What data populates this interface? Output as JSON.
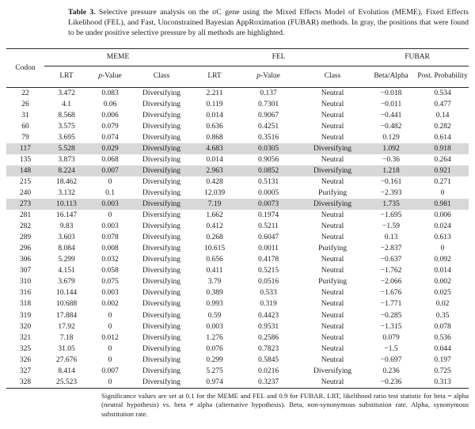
{
  "caption": {
    "label": "Table 3.",
    "text": " Selective pressure analysis on the σC gene using the Mixed Effects Model of Evolution (MEME), Fixed Effects Likelihood (FEL), and Fast, Unconstrained Bayesian AppRoximation (FUBAR) methods. In gray, the positions that were found to be under positive selective pressure by all methods are highlighted."
  },
  "table": {
    "group_headers": [
      "MEME",
      "FEL",
      "FUBAR"
    ],
    "columns": [
      "Codon",
      "LRT",
      "p-Value",
      "Class",
      "LRT",
      "p-Value",
      "Class",
      "Beta/Alpha",
      "Post. Probability"
    ],
    "p_value_header": {
      "italic": "p",
      "rest": "-Value"
    },
    "highlight_color": "#d8d8d8",
    "highlighted_codons": [
      "117",
      "148",
      "273"
    ],
    "rows": [
      {
        "codon": "22",
        "meme_lrt": "3.472",
        "meme_p": "0.083",
        "meme_class": "Diversifying",
        "fel_lrt": "2.211",
        "fel_p": "0.137",
        "fel_class": "Neutral",
        "beta_alpha": "−0.018",
        "post_prob": "0.534",
        "highlight": false
      },
      {
        "codon": "26",
        "meme_lrt": "4.1",
        "meme_p": "0.06",
        "meme_class": "Diversifying",
        "fel_lrt": "0.119",
        "fel_p": "0.7301",
        "fel_class": "Neutral",
        "beta_alpha": "−0.011",
        "post_prob": "0.477",
        "highlight": false
      },
      {
        "codon": "31",
        "meme_lrt": "8.568",
        "meme_p": "0.006",
        "meme_class": "Diversifying",
        "fel_lrt": "0.014",
        "fel_p": "0.9067",
        "fel_class": "Neutral",
        "beta_alpha": "−0.441",
        "post_prob": "0.14",
        "highlight": false
      },
      {
        "codon": "60",
        "meme_lrt": "3.575",
        "meme_p": "0.079",
        "meme_class": "Diversifying",
        "fel_lrt": "0.636",
        "fel_p": "0.4251",
        "fel_class": "Neutral",
        "beta_alpha": "−0.482",
        "post_prob": "0.282",
        "highlight": false
      },
      {
        "codon": "79",
        "meme_lrt": "3.695",
        "meme_p": "0.074",
        "meme_class": "Diversifying",
        "fel_lrt": "0.868",
        "fel_p": "0.3516",
        "fel_class": "Neutral",
        "beta_alpha": "0.129",
        "post_prob": "0.614",
        "highlight": false
      },
      {
        "codon": "117",
        "meme_lrt": "5.528",
        "meme_p": "0.029",
        "meme_class": "Diversifying",
        "fel_lrt": "4.683",
        "fel_p": "0.0305",
        "fel_class": "Diversifying",
        "beta_alpha": "1.092",
        "post_prob": "0.918",
        "highlight": true
      },
      {
        "codon": "135",
        "meme_lrt": "3.873",
        "meme_p": "0.068",
        "meme_class": "Diversifying",
        "fel_lrt": "0.014",
        "fel_p": "0.9056",
        "fel_class": "Neutral",
        "beta_alpha": "−0.36",
        "post_prob": "0.264",
        "highlight": false
      },
      {
        "codon": "148",
        "meme_lrt": "8.224",
        "meme_p": "0.007",
        "meme_class": "Diversifying",
        "fel_lrt": "2.963",
        "fel_p": "0.0852",
        "fel_class": "Diversifying",
        "beta_alpha": "1.218",
        "post_prob": "0.921",
        "highlight": true
      },
      {
        "codon": "215",
        "meme_lrt": "18.462",
        "meme_p": "0",
        "meme_class": "Diversifying",
        "fel_lrt": "0.428",
        "fel_p": "0.5131",
        "fel_class": "Neutral",
        "beta_alpha": "−0.161",
        "post_prob": "0.271",
        "highlight": false
      },
      {
        "codon": "240",
        "meme_lrt": "3.132",
        "meme_p": "0.1",
        "meme_class": "Diversifying",
        "fel_lrt": "12.039",
        "fel_p": "0.0005",
        "fel_class": "Purifying",
        "beta_alpha": "−2.393",
        "post_prob": "0",
        "highlight": false
      },
      {
        "codon": "273",
        "meme_lrt": "10.113",
        "meme_p": "0.003",
        "meme_class": "Diversifying",
        "fel_lrt": "7.19",
        "fel_p": "0.0073",
        "fel_class": "Diversifying",
        "beta_alpha": "1.735",
        "post_prob": "0.981",
        "highlight": true
      },
      {
        "codon": "281",
        "meme_lrt": "16.147",
        "meme_p": "0",
        "meme_class": "Diversifying",
        "fel_lrt": "1.662",
        "fel_p": "0.1974",
        "fel_class": "Neutral",
        "beta_alpha": "−1.695",
        "post_prob": "0.006",
        "highlight": false
      },
      {
        "codon": "282",
        "meme_lrt": "9.83",
        "meme_p": "0.003",
        "meme_class": "Diversifying",
        "fel_lrt": "0.412",
        "fel_p": "0.5211",
        "fel_class": "Neutral",
        "beta_alpha": "−1.59",
        "post_prob": "0.024",
        "highlight": false
      },
      {
        "codon": "289",
        "meme_lrt": "3.603",
        "meme_p": "0.078",
        "meme_class": "Diversifying",
        "fel_lrt": "0.268",
        "fel_p": "0.6047",
        "fel_class": "Neutral",
        "beta_alpha": "0.13",
        "post_prob": "0.613",
        "highlight": false
      },
      {
        "codon": "296",
        "meme_lrt": "8.084",
        "meme_p": "0.008",
        "meme_class": "Diversifying",
        "fel_lrt": "10.615",
        "fel_p": "0.0011",
        "fel_class": "Purifying",
        "beta_alpha": "−2.837",
        "post_prob": "0",
        "highlight": false
      },
      {
        "codon": "306",
        "meme_lrt": "5.299",
        "meme_p": "0.032",
        "meme_class": "Diversifying",
        "fel_lrt": "0.656",
        "fel_p": "0.4178",
        "fel_class": "Neutral",
        "beta_alpha": "−0.637",
        "post_prob": "0.092",
        "highlight": false
      },
      {
        "codon": "307",
        "meme_lrt": "4.151",
        "meme_p": "0.058",
        "meme_class": "Diversifying",
        "fel_lrt": "0.411",
        "fel_p": "0.5215",
        "fel_class": "Neutral",
        "beta_alpha": "−1.762",
        "post_prob": "0.014",
        "highlight": false
      },
      {
        "codon": "310",
        "meme_lrt": "3.679",
        "meme_p": "0.075",
        "meme_class": "Diversifying",
        "fel_lrt": "3.79",
        "fel_p": "0.0516",
        "fel_class": "Purifying",
        "beta_alpha": "−2.066",
        "post_prob": "0.002",
        "highlight": false
      },
      {
        "codon": "316",
        "meme_lrt": "10.144",
        "meme_p": "0.003",
        "meme_class": "Diversifying",
        "fel_lrt": "0.389",
        "fel_p": "0.533",
        "fel_class": "Neutral",
        "beta_alpha": "−1.676",
        "post_prob": "0.025",
        "highlight": false
      },
      {
        "codon": "318",
        "meme_lrt": "10.688",
        "meme_p": "0.002",
        "meme_class": "Diversifying",
        "fel_lrt": "0.993",
        "fel_p": "0.319",
        "fel_class": "Neutral",
        "beta_alpha": "−1.771",
        "post_prob": "0.02",
        "highlight": false
      },
      {
        "codon": "319",
        "meme_lrt": "17.884",
        "meme_p": "0",
        "meme_class": "Diversifying",
        "fel_lrt": "0.59",
        "fel_p": "0.4423",
        "fel_class": "Neutral",
        "beta_alpha": "−0.285",
        "post_prob": "0.35",
        "highlight": false
      },
      {
        "codon": "320",
        "meme_lrt": "17.92",
        "meme_p": "0",
        "meme_class": "Diversifying",
        "fel_lrt": "0.003",
        "fel_p": "0.9531",
        "fel_class": "Neutral",
        "beta_alpha": "−1.315",
        "post_prob": "0.078",
        "highlight": false
      },
      {
        "codon": "321",
        "meme_lrt": "7.18",
        "meme_p": "0.012",
        "meme_class": "Diversifying",
        "fel_lrt": "1.276",
        "fel_p": "0.2586",
        "fel_class": "Neutral",
        "beta_alpha": "0.079",
        "post_prob": "0.536",
        "highlight": false
      },
      {
        "codon": "325",
        "meme_lrt": "31.05",
        "meme_p": "0",
        "meme_class": "Diversifying",
        "fel_lrt": "0.076",
        "fel_p": "0.7823",
        "fel_class": "Neutral",
        "beta_alpha": "−1.5",
        "post_prob": "0.044",
        "highlight": false
      },
      {
        "codon": "326",
        "meme_lrt": "27.676",
        "meme_p": "0",
        "meme_class": "Diversifying",
        "fel_lrt": "0.299",
        "fel_p": "0.5845",
        "fel_class": "Neutral",
        "beta_alpha": "−0.697",
        "post_prob": "0.197",
        "highlight": false
      },
      {
        "codon": "327",
        "meme_lrt": "8.414",
        "meme_p": "0.007",
        "meme_class": "Diversifying",
        "fel_lrt": "5.275",
        "fel_p": "0.0216",
        "fel_class": "Diversifying",
        "beta_alpha": "0.236",
        "post_prob": "0.725",
        "highlight": false
      },
      {
        "codon": "328",
        "meme_lrt": "25.523",
        "meme_p": "0",
        "meme_class": "Diversifying",
        "fel_lrt": "0.974",
        "fel_p": "0.3237",
        "fel_class": "Neutral",
        "beta_alpha": "−0.236",
        "post_prob": "0.313",
        "highlight": false
      }
    ]
  },
  "footnote": "Significance values are set at 0.1 for the MEME and FEL and 0.9 for FUBAR. LRT, likelihood ratio test statistic for beta = alpha (neutral hypothesis) vs. beta ≠ alpha (alternative hypothesis). Beta, non-synonymous substitution rate. Alpha, synonymous substitution rate."
}
